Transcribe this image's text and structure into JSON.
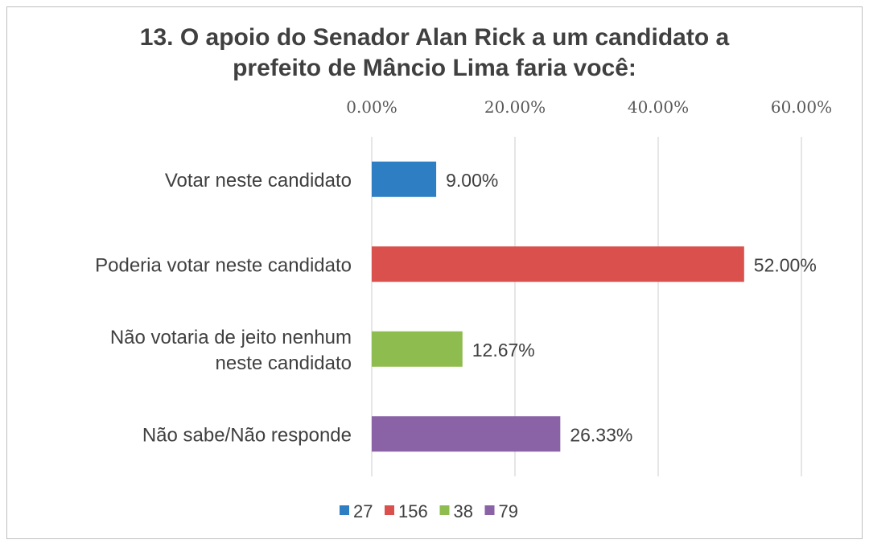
{
  "chart_data": {
    "type": "bar",
    "orientation": "horizontal",
    "title": "13. O apoio do Senador Alan Rick a um candidato a prefeito de Mâncio Lima faria você:",
    "title_lines": [
      "13. O apoio do Senador Alan Rick a um candidato a",
      "prefeito de Mâncio Lima faria você:"
    ],
    "categories": [
      [
        "Votar neste candidato"
      ],
      [
        "Poderia votar neste candidato"
      ],
      [
        "Não votaria de jeito nenhum",
        "neste candidato"
      ],
      [
        "Não sabe/Não responde"
      ]
    ],
    "values": [
      9.0,
      52.0,
      12.67,
      26.33
    ],
    "data_labels": [
      "9.00%",
      "52.00%",
      "12.67%",
      "26.33%"
    ],
    "colors": [
      "#2e7ec3",
      "#d9504c",
      "#8fbc4f",
      "#8a62a6"
    ],
    "xlim": [
      0,
      60
    ],
    "xticks": [
      "0.00%",
      "20.00%",
      "40.00%",
      "60.00%"
    ],
    "xtick_values": [
      0,
      20,
      40,
      60
    ],
    "grid": true,
    "legend": {
      "placement": "bottom",
      "entries": [
        "27",
        "156",
        "38",
        "79"
      ]
    }
  }
}
